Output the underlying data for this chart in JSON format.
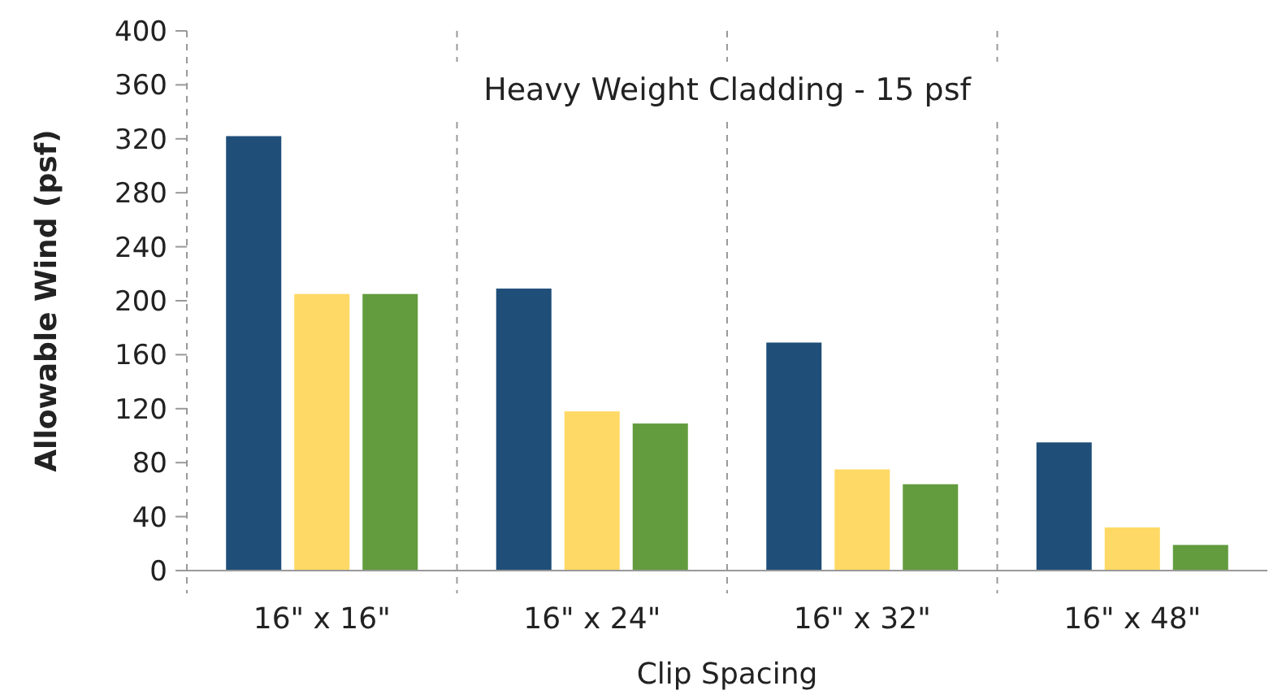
{
  "chart_data": {
    "type": "bar",
    "title": "Heavy Weight Cladding - 15 psf",
    "xlabel": "Clip Spacing",
    "ylabel": "Allowable Wind (psf)",
    "categories": [
      "16\" x 16\"",
      "16\" x 24\"",
      "16\" x 32\"",
      "16\" x 48\""
    ],
    "series": [
      {
        "color": "#1f4e79",
        "values": [
          322,
          209,
          169,
          95
        ]
      },
      {
        "color": "#ffd966",
        "values": [
          205,
          118,
          75,
          32
        ]
      },
      {
        "color": "#629c3e",
        "values": [
          205,
          109,
          64,
          19
        ]
      }
    ],
    "ylim": [
      0,
      400
    ],
    "yticks": [
      0,
      40,
      80,
      120,
      160,
      200,
      240,
      280,
      320,
      360,
      400
    ],
    "grid": "x"
  }
}
